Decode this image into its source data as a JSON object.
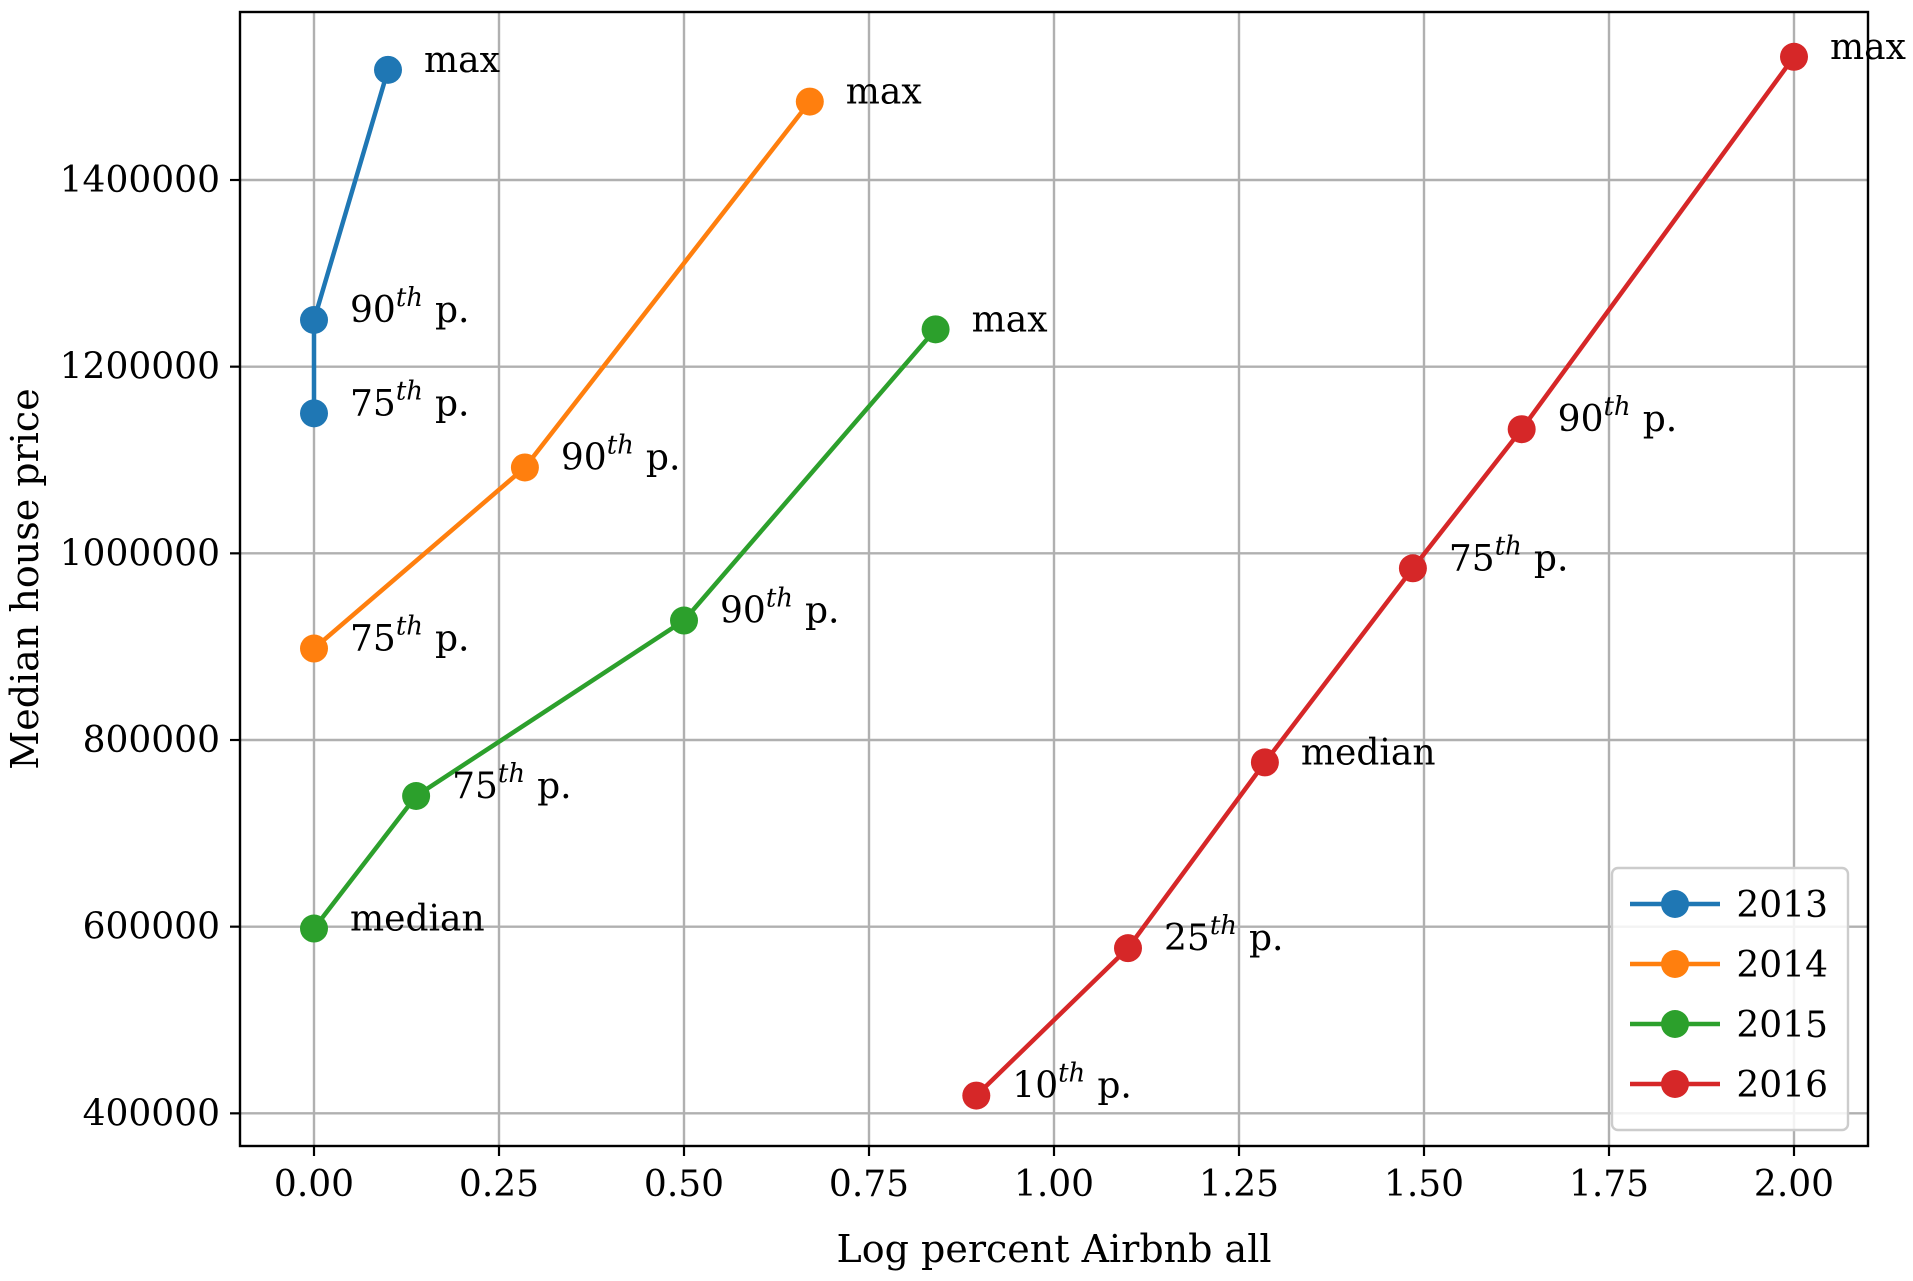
{
  "chart_data": {
    "type": "line",
    "xlabel": "Log percent Airbnb all",
    "ylabel": "Median house price",
    "xlim": [
      -0.1,
      2.1
    ],
    "ylim": [
      365000,
      1580000
    ],
    "xticks": [
      0.0,
      0.25,
      0.5,
      0.75,
      1.0,
      1.25,
      1.5,
      1.75,
      2.0
    ],
    "xtick_labels": [
      "0.00",
      "0.25",
      "0.50",
      "0.75",
      "1.00",
      "1.25",
      "1.50",
      "1.75",
      "2.00"
    ],
    "yticks": [
      400000,
      600000,
      800000,
      1000000,
      1200000,
      1400000
    ],
    "ytick_labels": [
      "400000",
      "600000",
      "800000",
      "1000000",
      "1200000",
      "1400000"
    ],
    "grid": true,
    "legend": {
      "placement": "lower-right"
    },
    "series": [
      {
        "name": "2013",
        "color": "#1f77b4",
        "points": [
          {
            "x": 0.0,
            "y": 1150000,
            "label": "75",
            "sup": "th",
            "suffix": "p."
          },
          {
            "x": 0.0,
            "y": 1250000,
            "label": "90",
            "sup": "th",
            "suffix": "p."
          },
          {
            "x": 0.1,
            "y": 1518000,
            "label": "max",
            "sup": "",
            "suffix": ""
          }
        ]
      },
      {
        "name": "2014",
        "color": "#ff7f0e",
        "points": [
          {
            "x": 0.0,
            "y": 898000,
            "label": "75",
            "sup": "th",
            "suffix": "p."
          },
          {
            "x": 0.285,
            "y": 1092000,
            "label": "90",
            "sup": "th",
            "suffix": "p."
          },
          {
            "x": 0.67,
            "y": 1484000,
            "label": "max",
            "sup": "",
            "suffix": ""
          }
        ]
      },
      {
        "name": "2015",
        "color": "#2ca02c",
        "points": [
          {
            "x": 0.0,
            "y": 598000,
            "label": "median",
            "sup": "",
            "suffix": ""
          },
          {
            "x": 0.138,
            "y": 740000,
            "label": "75",
            "sup": "th",
            "suffix": "p."
          },
          {
            "x": 0.5,
            "y": 928000,
            "label": "90",
            "sup": "th",
            "suffix": "p."
          },
          {
            "x": 0.84,
            "y": 1240000,
            "label": "max",
            "sup": "",
            "suffix": ""
          }
        ]
      },
      {
        "name": "2016",
        "color": "#d62728",
        "points": [
          {
            "x": 0.895,
            "y": 419000,
            "label": "10",
            "sup": "th",
            "suffix": "p."
          },
          {
            "x": 1.1,
            "y": 577000,
            "label": "25",
            "sup": "th",
            "suffix": "p."
          },
          {
            "x": 1.285,
            "y": 776000,
            "label": "median",
            "sup": "",
            "suffix": ""
          },
          {
            "x": 1.485,
            "y": 984000,
            "label": "75",
            "sup": "th",
            "suffix": "p."
          },
          {
            "x": 1.632,
            "y": 1133000,
            "label": "90",
            "sup": "th",
            "suffix": "p."
          },
          {
            "x": 2.0,
            "y": 1532000,
            "label": "max",
            "sup": "",
            "suffix": ""
          }
        ]
      }
    ]
  }
}
